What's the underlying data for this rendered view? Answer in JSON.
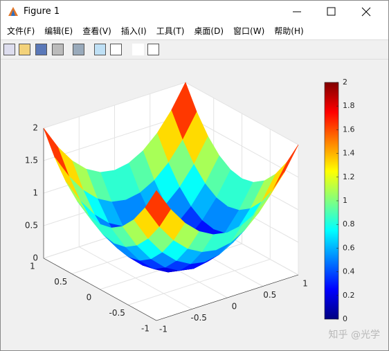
{
  "window": {
    "title": "Figure 1"
  },
  "menu": [
    "文件(F)",
    "编辑(E)",
    "查看(V)",
    "插入(I)",
    "工具(T)",
    "桌面(D)",
    "窗口(W)",
    "帮助(H)"
  ],
  "chart_data": {
    "type": "surface",
    "colormap": "jet",
    "grid": true,
    "x": [
      -1,
      -0.8,
      -0.6,
      -0.4,
      -0.2,
      0,
      0.2,
      0.4,
      0.6,
      0.8,
      1
    ],
    "y": [
      -1,
      -0.8,
      -0.6,
      -0.4,
      -0.2,
      0,
      0.2,
      0.4,
      0.6,
      0.8,
      1
    ],
    "z": [
      [
        2,
        1.64,
        1.36,
        1.16,
        1.04,
        1,
        1.04,
        1.16,
        1.36,
        1.64,
        2
      ],
      [
        1.64,
        1.28,
        1,
        0.8,
        0.68,
        0.64,
        0.68,
        0.8,
        1,
        1.28,
        1.64
      ],
      [
        1.36,
        1,
        0.72,
        0.52,
        0.4,
        0.36,
        0.4,
        0.52,
        0.72,
        1,
        1.36
      ],
      [
        1.16,
        0.8,
        0.52,
        0.32,
        0.2,
        0.16,
        0.2,
        0.32,
        0.52,
        0.8,
        1.16
      ],
      [
        1.04,
        0.68,
        0.4,
        0.2,
        0.08,
        0.04,
        0.08,
        0.2,
        0.4,
        0.68,
        1.04
      ],
      [
        1,
        0.64,
        0.36,
        0.16,
        0.04,
        0,
        0.04,
        0.16,
        0.36,
        0.64,
        1
      ],
      [
        1.04,
        0.68,
        0.4,
        0.2,
        0.08,
        0.04,
        0.08,
        0.2,
        0.4,
        0.68,
        1.04
      ],
      [
        1.16,
        0.8,
        0.52,
        0.32,
        0.2,
        0.16,
        0.2,
        0.32,
        0.52,
        0.8,
        1.16
      ],
      [
        1.36,
        1,
        0.72,
        0.52,
        0.4,
        0.36,
        0.4,
        0.52,
        0.72,
        1,
        1.36
      ],
      [
        1.64,
        1.28,
        1,
        0.8,
        0.68,
        0.64,
        0.68,
        0.8,
        1,
        1.28,
        1.64
      ],
      [
        2,
        1.64,
        1.36,
        1.16,
        1.04,
        1,
        1.04,
        1.16,
        1.36,
        1.64,
        2
      ]
    ],
    "xlim": [
      -1,
      1
    ],
    "xticks": [
      -1,
      -0.5,
      0,
      0.5,
      1
    ],
    "ylim": [
      -1,
      1
    ],
    "yticks": [
      -1,
      -0.5,
      0,
      0.5,
      1
    ],
    "zlim": [
      0,
      2
    ],
    "zticks": [
      0,
      0.5,
      1,
      1.5,
      2
    ],
    "clim": [
      0,
      2
    ],
    "cticks": [
      0,
      0.2,
      0.4,
      0.6,
      0.8,
      1,
      1.2,
      1.4,
      1.6,
      1.8,
      2
    ]
  },
  "watermark": "知乎 @光学"
}
